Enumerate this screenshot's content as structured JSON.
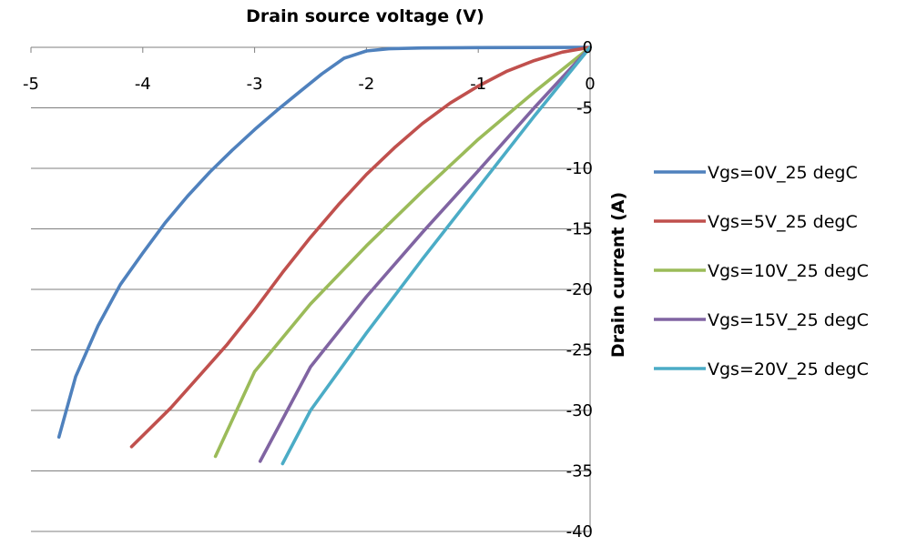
{
  "chart_data": {
    "type": "line",
    "title": "",
    "xlabel": "Drain source voltage (V)",
    "ylabel": "Drain current (A)",
    "xlim": [
      -5,
      0
    ],
    "ylim": [
      -40,
      0
    ],
    "x_ticks": [
      -5,
      -4,
      -3,
      -2,
      -1,
      0
    ],
    "y_ticks": [
      0,
      -5,
      -10,
      -15,
      -20,
      -25,
      -30,
      -35,
      -40
    ],
    "grid": true,
    "legend_position": "right",
    "series": [
      {
        "name": "Vgs=0V_25 degC",
        "color": "#4f81bd",
        "points": [
          [
            0,
            0
          ],
          [
            -1,
            -0.02
          ],
          [
            -1.5,
            -0.05
          ],
          [
            -1.8,
            -0.12
          ],
          [
            -2,
            -0.3
          ],
          [
            -2.2,
            -0.9
          ],
          [
            -2.4,
            -2.2
          ],
          [
            -2.6,
            -3.7
          ],
          [
            -2.8,
            -5.2
          ],
          [
            -3,
            -6.8
          ],
          [
            -3.2,
            -8.5
          ],
          [
            -3.4,
            -10.3
          ],
          [
            -3.6,
            -12.3
          ],
          [
            -3.8,
            -14.5
          ],
          [
            -4,
            -17
          ],
          [
            -4.2,
            -19.6
          ],
          [
            -4.4,
            -23
          ],
          [
            -4.6,
            -27.2
          ],
          [
            -4.75,
            -32.2
          ]
        ]
      },
      {
        "name": "Vgs=5V_25 degC",
        "color": "#c0504d",
        "points": [
          [
            0,
            0
          ],
          [
            -0.25,
            -0.4
          ],
          [
            -0.5,
            -1.1
          ],
          [
            -0.75,
            -2
          ],
          [
            -1,
            -3.2
          ],
          [
            -1.25,
            -4.6
          ],
          [
            -1.5,
            -6.3
          ],
          [
            -1.75,
            -8.3
          ],
          [
            -2,
            -10.5
          ],
          [
            -2.25,
            -13
          ],
          [
            -2.5,
            -15.7
          ],
          [
            -2.75,
            -18.6
          ],
          [
            -3,
            -21.7
          ],
          [
            -3.25,
            -24.6
          ],
          [
            -3.5,
            -27.2
          ],
          [
            -3.75,
            -29.8
          ],
          [
            -4.1,
            -33
          ]
        ]
      },
      {
        "name": "Vgs=10V_25 degC",
        "color": "#9bbb59",
        "points": [
          [
            0,
            0
          ],
          [
            -0.5,
            -3.7
          ],
          [
            -1,
            -7.6
          ],
          [
            -1.5,
            -11.9
          ],
          [
            -2,
            -16.4
          ],
          [
            -2.5,
            -21.2
          ],
          [
            -3,
            -26.8
          ],
          [
            -3.35,
            -33.8
          ]
        ]
      },
      {
        "name": "Vgs=15V_25 degC",
        "color": "#8064a2",
        "points": [
          [
            0,
            0
          ],
          [
            -0.5,
            -5
          ],
          [
            -1,
            -10.2
          ],
          [
            -1.5,
            -15.3
          ],
          [
            -2,
            -20.6
          ],
          [
            -2.5,
            -26.4
          ],
          [
            -2.95,
            -34.2
          ]
        ]
      },
      {
        "name": "Vgs=20V_25 degC",
        "color": "#4bacc6",
        "points": [
          [
            0,
            0
          ],
          [
            -0.5,
            -5.7
          ],
          [
            -1,
            -11.6
          ],
          [
            -1.5,
            -17.5
          ],
          [
            -2,
            -23.6
          ],
          [
            -2.5,
            -30
          ],
          [
            -2.75,
            -34.4
          ]
        ]
      }
    ]
  }
}
